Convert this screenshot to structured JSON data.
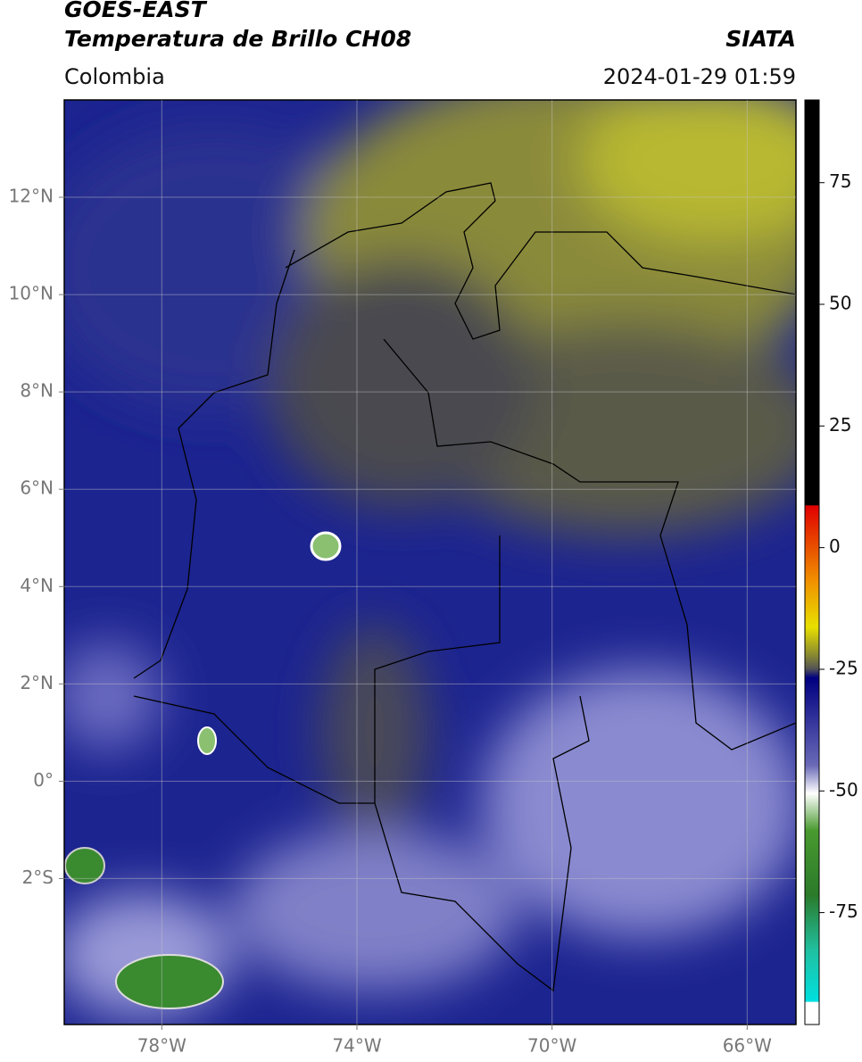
{
  "header": {
    "title": "GOES-EAST",
    "subtitle": "Temperatura de Brillo CH08",
    "region": "Colombia",
    "source": "SIATA",
    "datetime": "2024-01-29 01:59"
  },
  "map": {
    "lonlim": [
      -80,
      -65
    ],
    "latlim": [
      -5,
      14
    ],
    "lat_ticks": [
      {
        "value": 12,
        "label": "12°N"
      },
      {
        "value": 10,
        "label": "10°N"
      },
      {
        "value": 8,
        "label": "8°N"
      },
      {
        "value": 6,
        "label": "6°N"
      },
      {
        "value": 4,
        "label": "4°N"
      },
      {
        "value": 2,
        "label": "2°N"
      },
      {
        "value": 0,
        "label": "0°"
      },
      {
        "value": -2,
        "label": "2°S"
      }
    ],
    "lon_ticks": [
      {
        "value": -78,
        "label": "78°W"
      },
      {
        "value": -74,
        "label": "74°W"
      },
      {
        "value": -70,
        "label": "70°W"
      },
      {
        "value": -66,
        "label": "66°W"
      }
    ]
  },
  "colorbar": {
    "lim": [
      -98,
      92
    ],
    "ticks": [
      75,
      50,
      25,
      0,
      -25,
      -50,
      -75
    ]
  }
}
